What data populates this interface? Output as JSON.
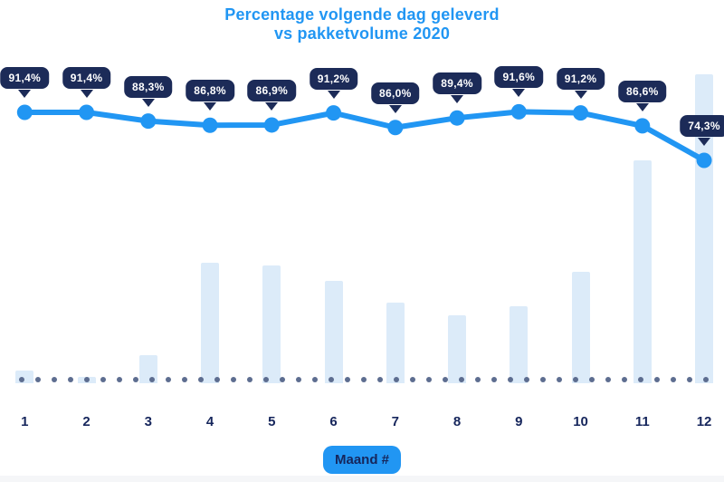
{
  "title": {
    "line1": "Percentage volgende dag geleverd",
    "line2": "vs pakketvolume 2020"
  },
  "xaxis_label": "Maand #",
  "colors": {
    "accent_blue": "#2196f3",
    "tooltip_navy": "#1c2b58",
    "bar_fill": "#dcebf9",
    "dot_gray": "#5d6d90",
    "label_navy": "#16265c",
    "bottom_strip": "#f5f6f8"
  },
  "chart_data": {
    "type": "line",
    "title": "Percentage volgende dag geleverd vs pakketvolume 2020",
    "xlabel": "Maand #",
    "ylabel": "",
    "categories": [
      "1",
      "2",
      "3",
      "4",
      "5",
      "6",
      "7",
      "8",
      "9",
      "10",
      "11",
      "12"
    ],
    "legend": "none",
    "grid": "off",
    "series": [
      {
        "name": "percentage volgende dag geleverd",
        "type": "line",
        "unit": "%",
        "values": [
          91.4,
          91.4,
          88.3,
          86.8,
          86.9,
          91.2,
          86.0,
          89.4,
          91.6,
          91.2,
          86.6,
          74.3
        ],
        "labels": [
          "91,4%",
          "91,4%",
          "88,3%",
          "86,8%",
          "86,9%",
          "91,2%",
          "86,0%",
          "89,4%",
          "91,6%",
          "91,2%",
          "86,6%",
          "74,3%"
        ]
      },
      {
        "name": "pakketvolume 2020",
        "type": "bar",
        "unit": "relative index (max month = 100, no axis shown)",
        "values": [
          4,
          2,
          9,
          39,
          38,
          33,
          26,
          22,
          25,
          36,
          72,
          100
        ]
      }
    ]
  }
}
